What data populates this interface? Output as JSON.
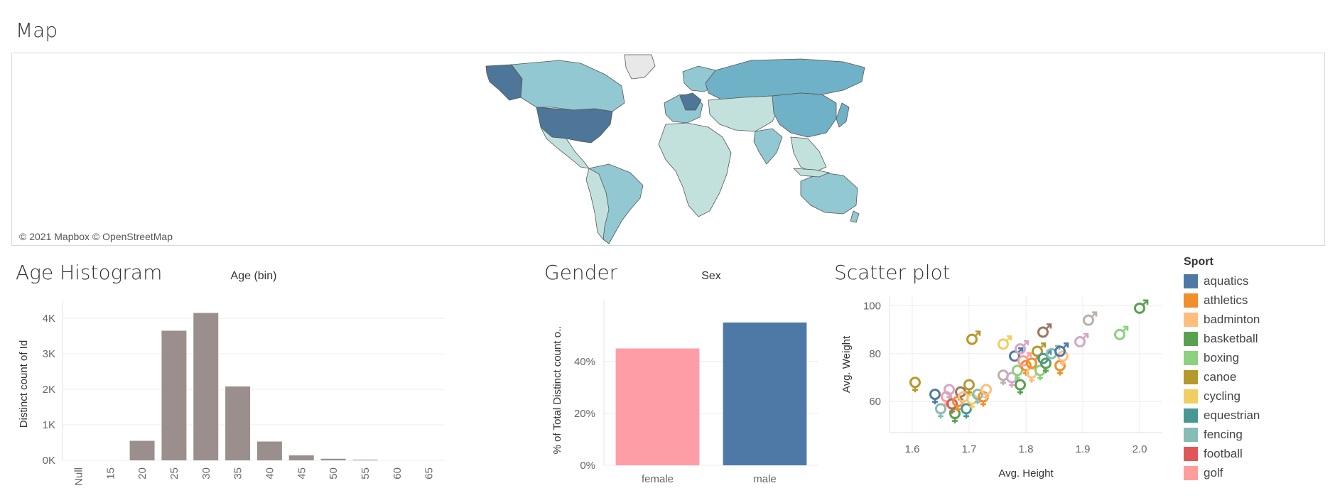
{
  "map": {
    "title": "Map",
    "credit": "© 2021 Mapbox © OpenStreetMap",
    "colors": {
      "dark": "#4d7698",
      "mid": "#6fb1c6",
      "light": "#92c8d2",
      "pale": "#c2e1dd",
      "none": "#e8e8e8"
    }
  },
  "histogram": {
    "title": "Age Histogram"
  },
  "gender": {
    "title": "Gender"
  },
  "scatter": {
    "title": "Scatter plot"
  },
  "chart_data": [
    {
      "type": "bar",
      "header": "Age (bin)",
      "ylabel": "Distinct count of Id",
      "categories": [
        "Null",
        "15",
        "20",
        "25",
        "30",
        "35",
        "40",
        "45",
        "50",
        "55",
        "60",
        "65"
      ],
      "values": [
        0,
        0,
        550,
        3650,
        4150,
        2080,
        530,
        140,
        45,
        20,
        0,
        0
      ],
      "yticks": [
        0,
        1000,
        2000,
        3000,
        4000
      ],
      "ytick_labels": [
        "0K",
        "1K",
        "2K",
        "3K",
        "4K"
      ],
      "ylim": [
        0,
        4300
      ],
      "color": "#9a8f8c",
      "grid": true
    },
    {
      "type": "bar",
      "header": "Sex",
      "ylabel": "% of Total Distinct count o..",
      "categories": [
        "female",
        "male"
      ],
      "values": [
        45,
        55
      ],
      "colors": [
        "#ff9da7",
        "#4e79a7"
      ],
      "yticks": [
        0,
        20,
        40
      ],
      "ytick_labels": [
        "0%",
        "20%",
        "40%"
      ],
      "ylim": [
        0,
        58
      ],
      "grid": true
    },
    {
      "type": "scatter",
      "xlabel": "Avg. Height",
      "ylabel": "Avg. Weight",
      "xticks": [
        1.6,
        1.7,
        1.8,
        1.9,
        2.0
      ],
      "yticks": [
        60,
        80,
        100
      ],
      "xlim": [
        1.56,
        2.04
      ],
      "ylim": [
        47,
        104
      ],
      "legend_title": "Sport",
      "legend_position": "right",
      "sports": [
        {
          "name": "aquatics",
          "color": "#4e79a7"
        },
        {
          "name": "athletics",
          "color": "#f28e2b"
        },
        {
          "name": "badminton",
          "color": "#ffbe7d"
        },
        {
          "name": "basketball",
          "color": "#59a14f"
        },
        {
          "name": "boxing",
          "color": "#8cd17d"
        },
        {
          "name": "canoe",
          "color": "#b6992d"
        },
        {
          "name": "cycling",
          "color": "#f1ce63"
        },
        {
          "name": "equestrian",
          "color": "#499894"
        },
        {
          "name": "fencing",
          "color": "#86bcb6"
        },
        {
          "name": "football",
          "color": "#e15759"
        },
        {
          "name": "golf",
          "color": "#ff9d9a"
        }
      ],
      "points": [
        {
          "x": 1.605,
          "y": 68,
          "sex": "female",
          "color": "#b6992d"
        },
        {
          "x": 1.64,
          "y": 63,
          "sex": "female",
          "color": "#4e79a7"
        },
        {
          "x": 1.65,
          "y": 57,
          "sex": "female",
          "color": "#86bcb6"
        },
        {
          "x": 1.66,
          "y": 62,
          "sex": "female",
          "color": "#ff9d9a"
        },
        {
          "x": 1.665,
          "y": 65,
          "sex": "female",
          "color": "#d4a6c8"
        },
        {
          "x": 1.67,
          "y": 59,
          "sex": "female",
          "color": "#e15759"
        },
        {
          "x": 1.675,
          "y": 55,
          "sex": "female",
          "color": "#59a14f"
        },
        {
          "x": 1.68,
          "y": 60,
          "sex": "female",
          "color": "#f28e2b"
        },
        {
          "x": 1.685,
          "y": 64,
          "sex": "female",
          "color": "#9d7660"
        },
        {
          "x": 1.69,
          "y": 62,
          "sex": "female",
          "color": "#ffbe7d"
        },
        {
          "x": 1.695,
          "y": 57,
          "sex": "female",
          "color": "#499894"
        },
        {
          "x": 1.7,
          "y": 67,
          "sex": "female",
          "color": "#b6992d"
        },
        {
          "x": 1.705,
          "y": 61,
          "sex": "female",
          "color": "#f1ce63"
        },
        {
          "x": 1.715,
          "y": 63,
          "sex": "female",
          "color": "#86bcb6"
        },
        {
          "x": 1.725,
          "y": 62,
          "sex": "female",
          "color": "#f28e2b"
        },
        {
          "x": 1.73,
          "y": 65,
          "sex": "female",
          "color": "#ffbe7d"
        },
        {
          "x": 1.76,
          "y": 71,
          "sex": "female",
          "color": "#bab0ac"
        },
        {
          "x": 1.775,
          "y": 70,
          "sex": "female",
          "color": "#d4a6c8"
        },
        {
          "x": 1.785,
          "y": 73,
          "sex": "female",
          "color": "#8cd17d"
        },
        {
          "x": 1.79,
          "y": 67,
          "sex": "female",
          "color": "#59a14f"
        },
        {
          "x": 1.8,
          "y": 75,
          "sex": "female",
          "color": "#f28e2b"
        },
        {
          "x": 1.81,
          "y": 72,
          "sex": "female",
          "color": "#ffbe7d"
        },
        {
          "x": 1.825,
          "y": 73,
          "sex": "female",
          "color": "#8cd17d"
        },
        {
          "x": 1.835,
          "y": 76,
          "sex": "female",
          "color": "#59a14f"
        },
        {
          "x": 1.86,
          "y": 75,
          "sex": "female",
          "color": "#f28e2b"
        },
        {
          "x": 1.865,
          "y": 79,
          "sex": "female",
          "color": "#ffbe7d"
        },
        {
          "x": 1.705,
          "y": 86,
          "sex": "male",
          "color": "#b6992d"
        },
        {
          "x": 1.76,
          "y": 84,
          "sex": "male",
          "color": "#f1ce63"
        },
        {
          "x": 1.78,
          "y": 79,
          "sex": "male",
          "color": "#4e79a7"
        },
        {
          "x": 1.79,
          "y": 82,
          "sex": "male",
          "color": "#d4a6c8"
        },
        {
          "x": 1.795,
          "y": 77,
          "sex": "male",
          "color": "#ff9d9a"
        },
        {
          "x": 1.81,
          "y": 76,
          "sex": "male",
          "color": "#f28e2b"
        },
        {
          "x": 1.82,
          "y": 81,
          "sex": "male",
          "color": "#b6992d"
        },
        {
          "x": 1.83,
          "y": 78,
          "sex": "male",
          "color": "#499894"
        },
        {
          "x": 1.845,
          "y": 80,
          "sex": "male",
          "color": "#86bcb6"
        },
        {
          "x": 1.86,
          "y": 81,
          "sex": "male",
          "color": "#4e79a7"
        },
        {
          "x": 1.83,
          "y": 89,
          "sex": "male",
          "color": "#9d7660"
        },
        {
          "x": 1.895,
          "y": 85,
          "sex": "male",
          "color": "#d4a6c8"
        },
        {
          "x": 1.91,
          "y": 94,
          "sex": "male",
          "color": "#bab0ac"
        },
        {
          "x": 1.965,
          "y": 88,
          "sex": "male",
          "color": "#8cd17d"
        },
        {
          "x": 2.0,
          "y": 99,
          "sex": "male",
          "color": "#59a14f"
        }
      ]
    }
  ]
}
